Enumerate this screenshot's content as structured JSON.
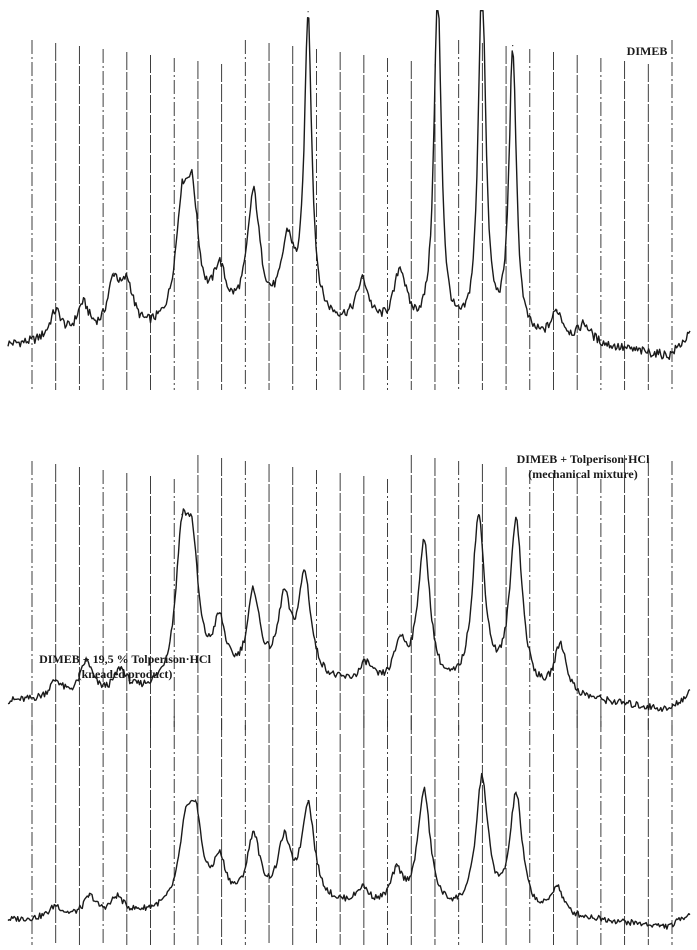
{
  "figure": {
    "type": "x-ray powder diffraction patterns",
    "ink_color": "#1a1a1a",
    "grid_color": "#2a2a2a"
  },
  "traces": [
    {
      "label_line1": "DIMEB",
      "label_line2": ""
    },
    {
      "label_line1": "DIMEB + Tolperison·HCl",
      "label_line2": "(mechanical mixture)"
    },
    {
      "label_line1": "DIMEB + 19,5 % Tolperison·HCl",
      "label_line2": "(kneaded product)"
    }
  ],
  "chart_data": {
    "type": "line",
    "title": "",
    "xlabel": "",
    "ylabel": "",
    "grid": true,
    "x_gridlines": 28,
    "legend": "none",
    "series": [
      {
        "name": "DIMEB",
        "baseline": 0.1,
        "peaks": [
          {
            "x": 0.07,
            "h": 0.08
          },
          {
            "x": 0.11,
            "h": 0.09
          },
          {
            "x": 0.155,
            "h": 0.14
          },
          {
            "x": 0.175,
            "h": 0.12
          },
          {
            "x": 0.255,
            "h": 0.28
          },
          {
            "x": 0.27,
            "h": 0.31
          },
          {
            "x": 0.31,
            "h": 0.13
          },
          {
            "x": 0.36,
            "h": 0.34
          },
          {
            "x": 0.41,
            "h": 0.2
          },
          {
            "x": 0.44,
            "h": 0.82
          },
          {
            "x": 0.52,
            "h": 0.12
          },
          {
            "x": 0.575,
            "h": 0.16
          },
          {
            "x": 0.63,
            "h": 0.94
          },
          {
            "x": 0.695,
            "h": 1.0
          },
          {
            "x": 0.74,
            "h": 0.79
          },
          {
            "x": 0.805,
            "h": 0.08
          },
          {
            "x": 0.845,
            "h": 0.05
          }
        ]
      },
      {
        "name": "DIMEB + Tolperison·HCl (mechanical mixture)",
        "baseline": 0.06,
        "peaks": [
          {
            "x": 0.07,
            "h": 0.06
          },
          {
            "x": 0.115,
            "h": 0.12
          },
          {
            "x": 0.165,
            "h": 0.08
          },
          {
            "x": 0.255,
            "h": 0.45
          },
          {
            "x": 0.27,
            "h": 0.41
          },
          {
            "x": 0.31,
            "h": 0.19
          },
          {
            "x": 0.36,
            "h": 0.29
          },
          {
            "x": 0.405,
            "h": 0.26
          },
          {
            "x": 0.435,
            "h": 0.35
          },
          {
            "x": 0.525,
            "h": 0.07
          },
          {
            "x": 0.575,
            "h": 0.14
          },
          {
            "x": 0.61,
            "h": 0.5
          },
          {
            "x": 0.69,
            "h": 0.6
          },
          {
            "x": 0.745,
            "h": 0.6
          },
          {
            "x": 0.81,
            "h": 0.18
          }
        ]
      },
      {
        "name": "DIMEB + 19,5 % Tolperison·HCl (kneaded product)",
        "baseline": 0.05,
        "peaks": [
          {
            "x": 0.07,
            "h": 0.05
          },
          {
            "x": 0.12,
            "h": 0.08
          },
          {
            "x": 0.16,
            "h": 0.07
          },
          {
            "x": 0.26,
            "h": 0.28
          },
          {
            "x": 0.275,
            "h": 0.33
          },
          {
            "x": 0.31,
            "h": 0.17
          },
          {
            "x": 0.36,
            "h": 0.27
          },
          {
            "x": 0.405,
            "h": 0.24
          },
          {
            "x": 0.44,
            "h": 0.4
          },
          {
            "x": 0.52,
            "h": 0.07
          },
          {
            "x": 0.57,
            "h": 0.14
          },
          {
            "x": 0.61,
            "h": 0.49
          },
          {
            "x": 0.695,
            "h": 0.55
          },
          {
            "x": 0.745,
            "h": 0.49
          },
          {
            "x": 0.805,
            "h": 0.12
          }
        ]
      }
    ]
  }
}
